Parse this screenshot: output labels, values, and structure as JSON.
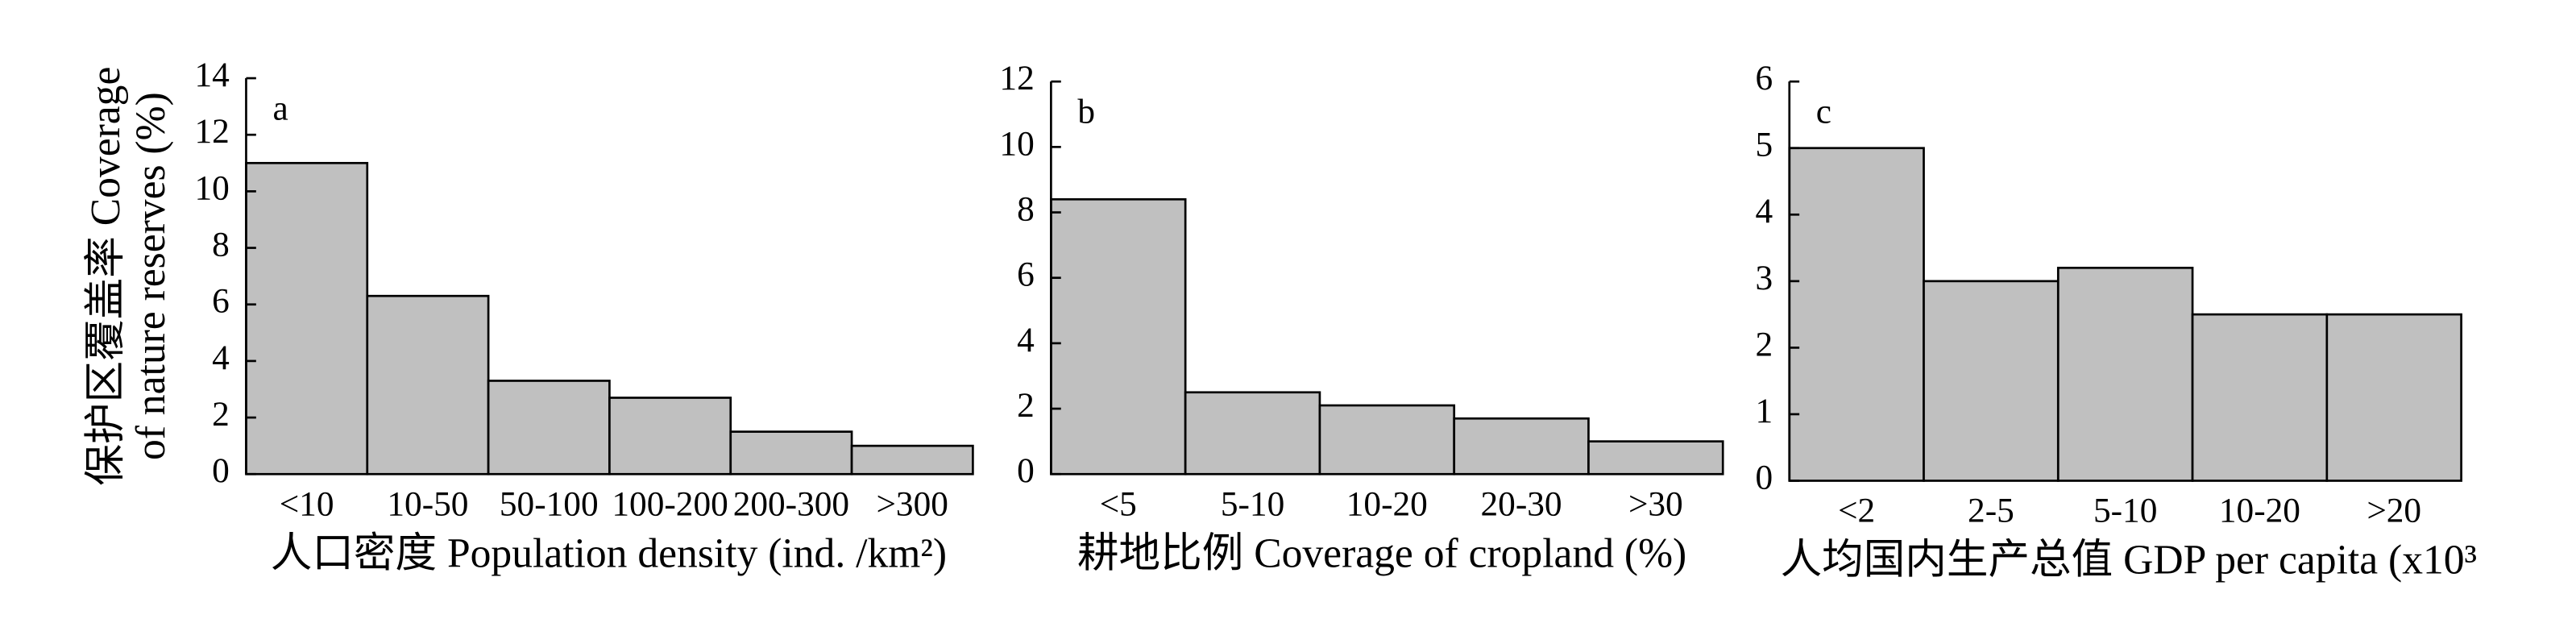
{
  "chart_data": [
    {
      "type": "bar",
      "label": "a",
      "ylabel": [
        "保护区覆盖率 Coverage",
        "of nature reserves (%)"
      ],
      "xlabel": "人口密度 Population density (ind. /km²)",
      "categories": [
        "<10",
        "10-50",
        "50-100",
        "100-200",
        "200-300",
        ">300"
      ],
      "values": [
        11,
        6.3,
        3.3,
        2.7,
        1.5,
        1.0
      ],
      "color": "#c0c0c0",
      "ylim": [
        0,
        14
      ],
      "yticks": [
        0,
        2,
        4,
        6,
        8,
        10,
        12,
        14
      ]
    },
    {
      "type": "bar",
      "label": "b",
      "xlabel": "耕地比例 Coverage of cropland (%)",
      "categories": [
        "<5",
        "5-10",
        "10-20",
        "20-30",
        ">30"
      ],
      "values": [
        8.4,
        2.5,
        2.1,
        1.7,
        1.0
      ],
      "color": "#c0c0c0",
      "ylim": [
        0,
        12
      ],
      "yticks": [
        0,
        2,
        4,
        6,
        8,
        10,
        12
      ]
    },
    {
      "type": "bar",
      "label": "c",
      "xlabel": "人均国内生产总值 GDP per capita (x10³",
      "categories": [
        "<2",
        "2-5",
        "5-10",
        "10-20",
        ">20"
      ],
      "values": [
        5.0,
        3.0,
        3.2,
        2.5,
        2.5
      ],
      "color": "#c0c0c0",
      "ylim": [
        0,
        6
      ],
      "yticks": [
        0,
        1,
        2,
        3,
        4,
        5,
        6
      ]
    }
  ]
}
